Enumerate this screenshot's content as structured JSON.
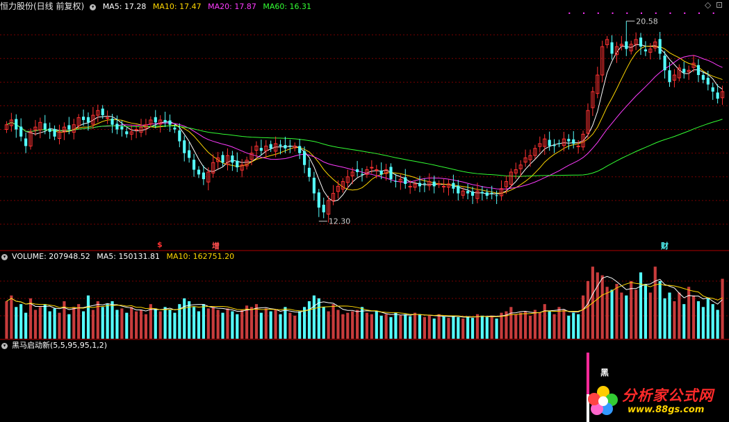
{
  "header": {
    "stock_title": "恒力股份(日线 前复权)",
    "ma5": "MA5: 17.28",
    "ma10": "MA10: 17.47",
    "ma20": "MA20: 17.87",
    "ma60": "MA60: 16.31"
  },
  "volume_header": {
    "volume": "VOLUME: 207948.52",
    "ma5": "MA5: 150131.81",
    "ma10": "MA10: 162751.20"
  },
  "indicator_header": {
    "name": "黑马启动新(5,5,95,95,1,2)"
  },
  "annotations": {
    "high_label": "20.58",
    "low_label": "12.30",
    "marker_s": "$",
    "marker_zeng": "增",
    "marker_cai": "财",
    "signal_label": "黑"
  },
  "watermark": {
    "main": "分析家公式网",
    "sub": "www.88gs.com"
  },
  "colors": {
    "up": "#ff3232",
    "down": "#54ffff",
    "ma5": "#ffffff",
    "ma10": "#ffd700",
    "ma20": "#ff3cff",
    "ma60": "#33ff33",
    "grid": "#7a0000"
  },
  "chart_data": {
    "type": "candlestick",
    "price_range": [
      11.5,
      21.0
    ],
    "high": 20.58,
    "low": 12.3,
    "last_ma": {
      "ma5": 17.28,
      "ma10": 17.47,
      "ma20": 17.87,
      "ma60": 16.31
    },
    "last_volume": 207948.52,
    "last_volume_ma": {
      "ma5": 150131.81,
      "ma10": 162751.2
    },
    "close": [
      16.2,
      16.4,
      16.0,
      15.7,
      15.3,
      15.9,
      16.1,
      16.3,
      16.0,
      15.9,
      15.7,
      15.9,
      16.1,
      16.0,
      16.2,
      16.5,
      16.4,
      16.3,
      16.6,
      16.8,
      16.6,
      16.5,
      16.2,
      16.0,
      16.0,
      15.8,
      15.9,
      16.0,
      16.1,
      16.2,
      16.4,
      16.3,
      16.4,
      16.3,
      16.2,
      16.0,
      15.5,
      15.0,
      14.8,
      14.3,
      14.1,
      13.9,
      14.2,
      14.6,
      14.8,
      14.6,
      14.9,
      14.6,
      14.4,
      14.5,
      14.7,
      15.0,
      15.3,
      15.1,
      15.3,
      15.2,
      15.4,
      15.3,
      15.2,
      15.3,
      15.3,
      15.0,
      14.5,
      14.0,
      13.3,
      12.7,
      12.5,
      13.0,
      13.3,
      13.6,
      13.8,
      14.0,
      14.2,
      14.2,
      14.1,
      14.3,
      14.4,
      14.3,
      14.1,
      14.3,
      13.9,
      13.8,
      13.9,
      13.7,
      13.6,
      13.7,
      13.6,
      13.7,
      13.8,
      13.6,
      13.7,
      13.6,
      13.7,
      13.5,
      13.3,
      13.4,
      13.3,
      13.2,
      13.4,
      13.3,
      13.2,
      13.3,
      13.2,
      13.5,
      13.8,
      14.2,
      14.3,
      14.5,
      14.8,
      14.9,
      15.2,
      15.4,
      15.6,
      15.3,
      15.3,
      15.4,
      15.6,
      15.5,
      15.4,
      15.3,
      15.8,
      16.8,
      17.6,
      18.3,
      19.5,
      19.8,
      19.2,
      19.5,
      19.6,
      19.4,
      19.6,
      19.8,
      19.5,
      19.3,
      19.4,
      19.7,
      19.2,
      18.5,
      18.0,
      18.3,
      18.6,
      18.4,
      18.5,
      18.8,
      18.3,
      18.1,
      17.9,
      17.6,
      17.3,
      17.6
    ],
    "volume": [
      130000,
      150000,
      110000,
      120000,
      90000,
      140000,
      100000,
      110000,
      120000,
      95000,
      105000,
      90000,
      130000,
      85000,
      110000,
      120000,
      95000,
      150000,
      100000,
      130000,
      110000,
      120000,
      130000,
      100000,
      105000,
      90000,
      110000,
      95000,
      100000,
      85000,
      120000,
      105000,
      95000,
      110000,
      100000,
      90000,
      120000,
      140000,
      130000,
      110000,
      95000,
      120000,
      105000,
      110000,
      100000,
      90000,
      105000,
      95000,
      85000,
      100000,
      115000,
      110000,
      120000,
      90000,
      105000,
      95000,
      100000,
      85000,
      110000,
      90000,
      80000,
      95000,
      110000,
      130000,
      150000,
      140000,
      110000,
      95000,
      120000,
      100000,
      85000,
      90000,
      95000,
      100000,
      110000,
      90000,
      85000,
      95000,
      80000,
      85000,
      75000,
      90000,
      80000,
      85000,
      78000,
      90000,
      85000,
      75000,
      80000,
      70000,
      85000,
      78000,
      72000,
      80000,
      75000,
      70000,
      78000,
      72000,
      85000,
      80000,
      75000,
      80000,
      70000,
      90000,
      95000,
      110000,
      85000,
      90000,
      95000,
      80000,
      100000,
      90000,
      120000,
      95000,
      85000,
      110000,
      100000,
      80000,
      90000,
      85000,
      150000,
      200000,
      250000,
      230000,
      220000,
      180000,
      170000,
      190000,
      160000,
      150000,
      200000,
      170000,
      230000,
      190000,
      160000,
      250000,
      200000,
      140000,
      160000,
      130000,
      160000,
      120000,
      180000,
      150000,
      130000,
      110000,
      140000,
      120000,
      100000,
      207948.52
    ]
  }
}
